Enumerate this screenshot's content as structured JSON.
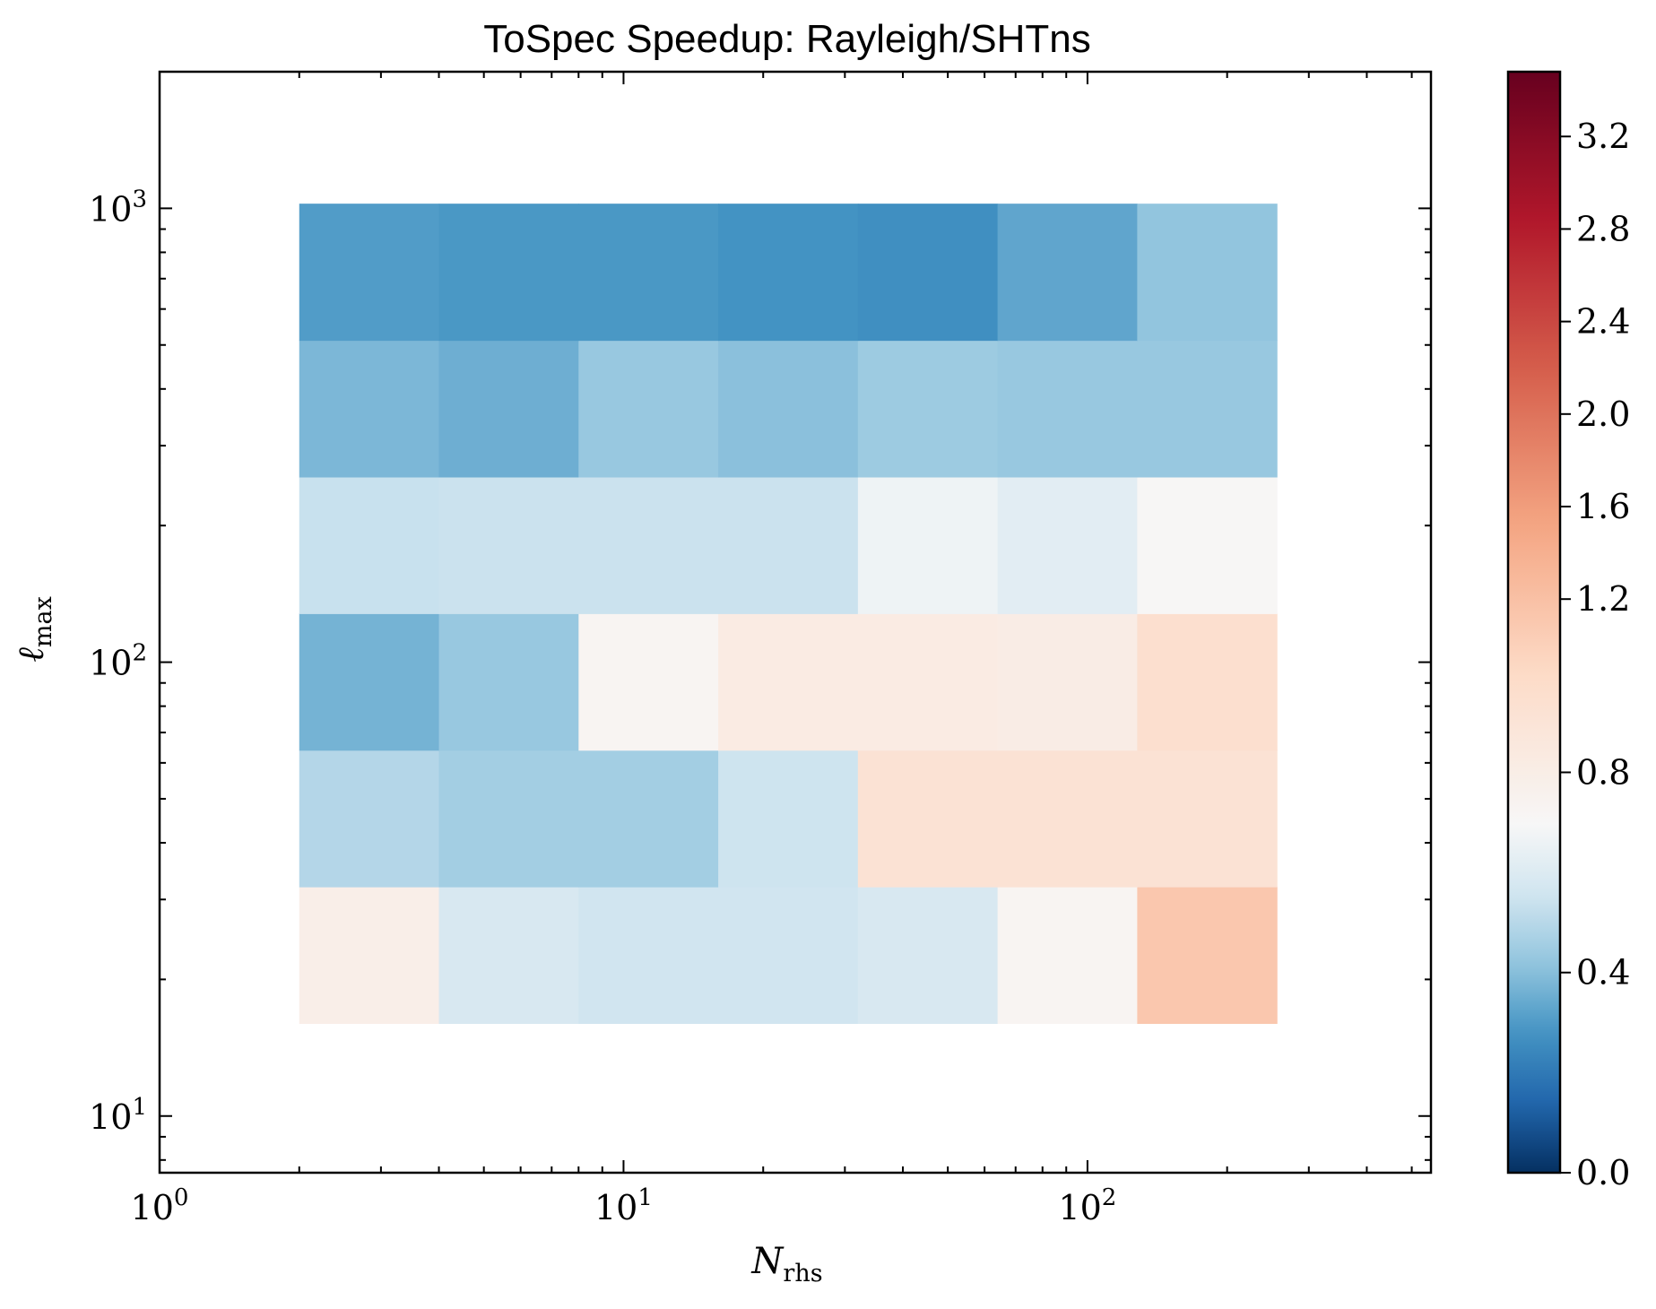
{
  "chart_data": {
    "type": "heatmap",
    "title": "ToSpec Speedup: Rayleigh/SHTns",
    "xlabel": {
      "main": "N",
      "sub": "rhs"
    },
    "ylabel": {
      "main": "ℓ",
      "sub": "max"
    },
    "xscale": "log",
    "yscale": "log",
    "xlim": [
      1,
      550
    ],
    "ylim": [
      7.5,
      2000
    ],
    "x_edges": [
      2,
      4,
      8,
      16,
      32,
      64,
      128,
      256
    ],
    "y_edges": [
      16,
      32,
      64,
      128,
      256,
      512,
      1024
    ],
    "x_ticks": [
      {
        "value": 1,
        "base": "10",
        "exp": "0"
      },
      {
        "value": 10,
        "base": "10",
        "exp": "1"
      },
      {
        "value": 100,
        "base": "10",
        "exp": "2"
      }
    ],
    "y_ticks": [
      {
        "value": 10,
        "base": "10",
        "exp": "1"
      },
      {
        "value": 100,
        "base": "10",
        "exp": "2"
      },
      {
        "value": 1000,
        "base": "10",
        "exp": "3"
      }
    ],
    "values": [
      [
        1.25,
        0.92,
        0.88,
        0.88,
        0.92,
        1.15,
        1.75
      ],
      [
        0.78,
        0.72,
        0.72,
        0.87,
        1.45,
        1.45,
        1.45
      ],
      [
        0.58,
        0.68,
        1.15,
        1.3,
        1.3,
        1.28,
        1.5
      ],
      [
        0.85,
        0.86,
        0.86,
        0.86,
        1.05,
        0.98,
        1.12
      ],
      [
        0.6,
        0.56,
        0.68,
        0.64,
        0.7,
        0.68,
        0.68
      ],
      [
        0.48,
        0.46,
        0.46,
        0.44,
        0.42,
        0.52,
        0.66
      ]
    ],
    "colorbar": {
      "colormap": "RdBu_r",
      "vmin": 0.0,
      "vmax": 3.48,
      "center": 1.1,
      "ticks": [
        "0.0",
        "0.4",
        "0.8",
        "1.2",
        "1.6",
        "2.0",
        "2.4",
        "2.8",
        "3.2"
      ]
    }
  }
}
